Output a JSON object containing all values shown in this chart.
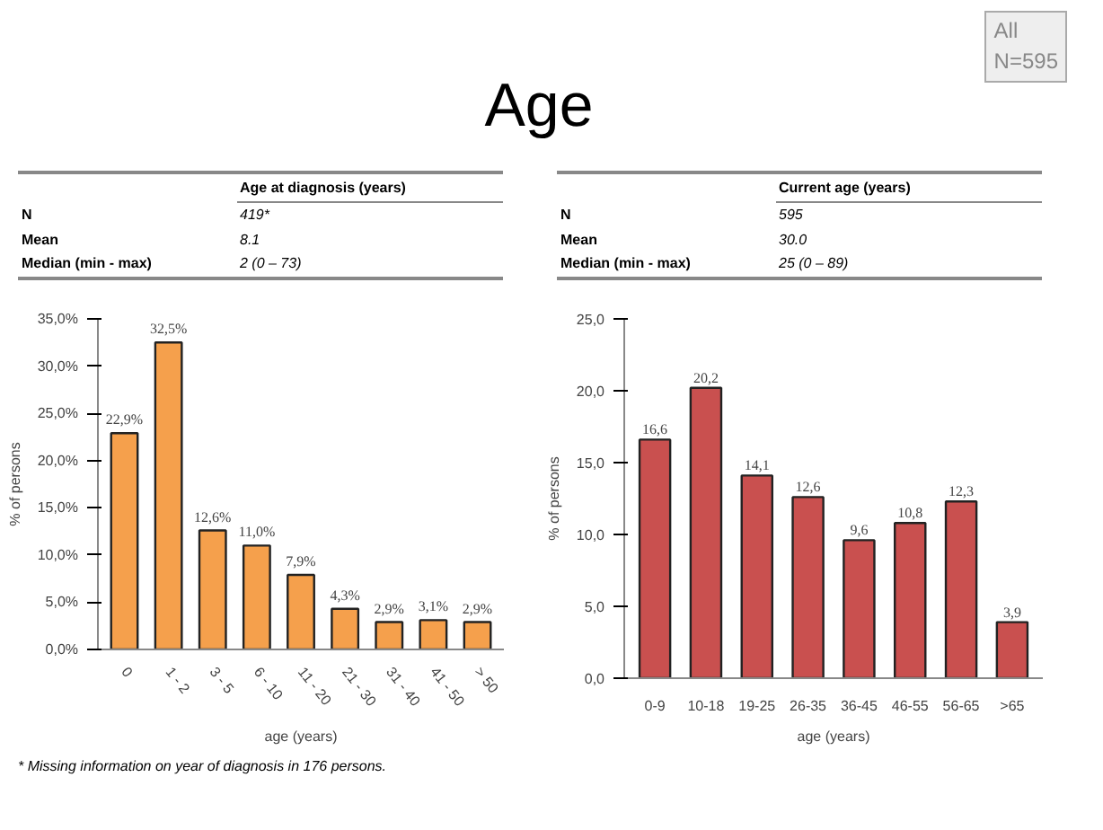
{
  "chart_data": [
    {
      "type": "bar",
      "title": "Age",
      "xlabel": "age (years)",
      "ylabel": "% of persons",
      "categories": [
        "0",
        "1 - 2",
        "3 - 5",
        "6 - 10",
        "11 - 20",
        "21 - 30",
        "31 - 40",
        "41 - 50",
        "> 50"
      ],
      "values": [
        22.9,
        32.5,
        12.6,
        11.0,
        7.9,
        4.3,
        2.9,
        3.1,
        2.9
      ],
      "color": "#f5a04c",
      "value_labels": [
        "22,9%",
        "32,5%",
        "12,6%",
        "11,0%",
        "7,9%",
        "4,3%",
        "2,9%",
        "3,1%",
        "2,9%"
      ],
      "ylim": [
        0,
        35
      ],
      "yticks": [
        {
          "value": 0,
          "label": "0,0%"
        },
        {
          "value": 5,
          "label": "5,0%"
        },
        {
          "value": 10,
          "label": "10,0%"
        },
        {
          "value": 15,
          "label": "15,0%"
        },
        {
          "value": 20,
          "label": "20,0%"
        },
        {
          "value": 25,
          "label": "25,0%"
        },
        {
          "value": 30,
          "label": "30,0%"
        },
        {
          "value": 35,
          "label": "35,0%"
        }
      ],
      "grid": false,
      "annotations": [
        "Age at diagnosis (years)",
        "N",
        "419*",
        "Mean",
        "8.1",
        "Median (min - max)",
        "2 (0 – 73)",
        "* Missing information on year of diagnosis in 176 persons."
      ]
    },
    {
      "type": "bar",
      "xlabel": "age (years)",
      "ylabel": "% of persons",
      "categories": [
        "0-9",
        "10-18",
        "19-25",
        "26-35",
        "36-45",
        "46-55",
        "56-65",
        ">65"
      ],
      "values": [
        16.6,
        20.2,
        14.1,
        12.6,
        9.6,
        10.8,
        12.3,
        3.9
      ],
      "color": "#c9504f",
      "value_labels": [
        "16,6",
        "20,2",
        "14,1",
        "12,6",
        "9,6",
        "10,8",
        "12,3",
        "3,9"
      ],
      "ylim": [
        0,
        25
      ],
      "yticks": [
        {
          "value": 0,
          "label": "0,0"
        },
        {
          "value": 5,
          "label": "5,0"
        },
        {
          "value": 10,
          "label": "10,0"
        },
        {
          "value": 15,
          "label": "15,0"
        },
        {
          "value": 20,
          "label": "20,0"
        },
        {
          "value": 25,
          "label": "25,0"
        }
      ],
      "grid": false,
      "annotations": [
        "Current age (years)",
        "N",
        "595",
        "Mean",
        "30.0",
        "Median (min - max)",
        "25 (0 – 89)",
        "All\nN=595"
      ]
    }
  ]
}
